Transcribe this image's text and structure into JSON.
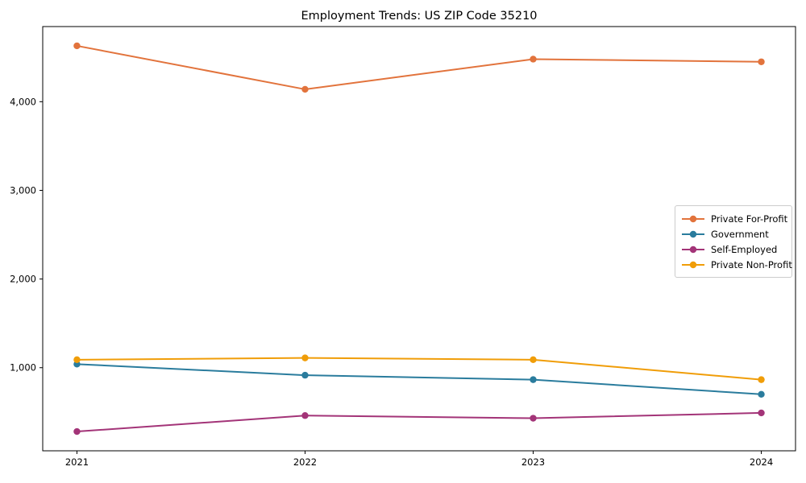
{
  "title": "Employment Trends: US ZIP Code 35210",
  "chart_data": {
    "type": "line",
    "title": "Employment Trends: US ZIP Code 35210",
    "xlabel": "",
    "ylabel": "",
    "x": [
      2021,
      2022,
      2023,
      2024
    ],
    "categories": [
      "2021",
      "2022",
      "2023",
      "2024"
    ],
    "series": [
      {
        "name": "Private For-Profit",
        "color": "#e2733c",
        "values": [
          4630,
          4140,
          4480,
          4450
        ]
      },
      {
        "name": "Government",
        "color": "#2a7c9d",
        "values": [
          1040,
          915,
          865,
          700
        ]
      },
      {
        "name": "Self-Employed",
        "color": "#a33478",
        "values": [
          280,
          460,
          430,
          490
        ]
      },
      {
        "name": "Private Non-Profit",
        "color": "#f09d08",
        "values": [
          1090,
          1110,
          1090,
          865
        ]
      }
    ],
    "xlim": [
      2020.85,
      2024.15
    ],
    "ylim": [
      62.5,
      4847.5
    ],
    "yticks": [
      1000,
      2000,
      3000,
      4000
    ],
    "ytick_labels": [
      "1,000",
      "2,000",
      "3,000",
      "4,000"
    ],
    "grid": false,
    "legend_position": "right-middle",
    "marker": "circle",
    "frame_color": "#000000"
  }
}
